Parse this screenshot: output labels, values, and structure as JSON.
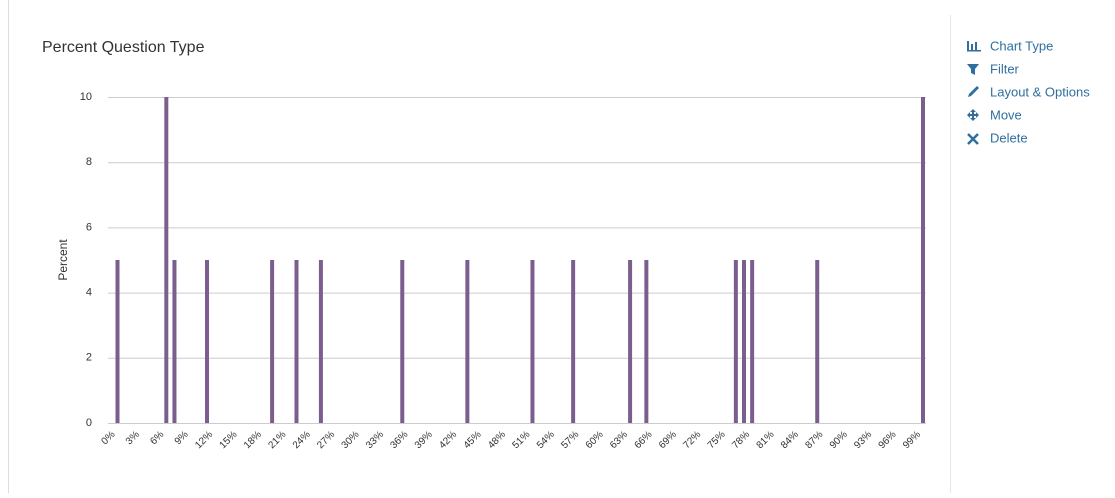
{
  "chart_data": {
    "type": "bar",
    "title": "Percent Question Type",
    "y_label": "Percent",
    "categories": [
      "0%",
      null,
      null,
      "3%",
      null,
      null,
      "6%",
      null,
      null,
      "9%",
      null,
      null,
      "12%",
      null,
      null,
      "15%",
      null,
      null,
      "18%",
      null,
      null,
      "21%",
      null,
      null,
      "24%",
      null,
      null,
      "27%",
      null,
      null,
      "30%",
      null,
      null,
      "33%",
      null,
      null,
      "36%",
      null,
      null,
      "39%",
      null,
      null,
      "42%",
      null,
      null,
      "45%",
      null,
      null,
      "48%",
      null,
      null,
      "51%",
      null,
      null,
      "54%",
      null,
      null,
      "57%",
      null,
      null,
      "60%",
      null,
      null,
      "63%",
      null,
      null,
      "66%",
      null,
      null,
      "69%",
      null,
      null,
      "72%",
      null,
      null,
      "75%",
      null,
      null,
      "78%",
      null,
      null,
      "81%",
      null,
      null,
      "84%",
      null,
      null,
      "87%",
      null,
      null,
      "90%",
      null,
      null,
      "93%",
      null,
      null,
      "96%",
      null,
      null,
      "99%"
    ],
    "values": [
      5,
      0,
      0,
      0,
      0,
      0,
      10,
      5,
      0,
      0,
      0,
      5,
      0,
      0,
      0,
      0,
      0,
      0,
      0,
      5,
      0,
      0,
      5,
      0,
      0,
      5,
      0,
      0,
      0,
      0,
      0,
      0,
      0,
      0,
      0,
      5,
      0,
      0,
      0,
      0,
      0,
      0,
      0,
      5,
      0,
      0,
      0,
      0,
      0,
      0,
      0,
      5,
      0,
      0,
      0,
      0,
      5,
      0,
      0,
      0,
      0,
      0,
      0,
      5,
      0,
      5,
      0,
      0,
      0,
      0,
      0,
      0,
      0,
      0,
      0,
      0,
      5,
      5,
      5,
      0,
      0,
      0,
      0,
      0,
      0,
      0,
      5,
      0,
      0,
      0,
      0,
      0,
      0,
      0,
      0,
      0,
      0,
      0,
      0,
      10
    ],
    "color": "#7b5e8e",
    "ylim": [
      0,
      10
    ],
    "yticks": [
      0,
      2,
      4,
      6,
      8,
      10
    ],
    "grid": true
  },
  "menu": {
    "items": [
      "Chart Type",
      "Filter",
      "Layout & Options",
      "Move",
      "Delete"
    ]
  }
}
